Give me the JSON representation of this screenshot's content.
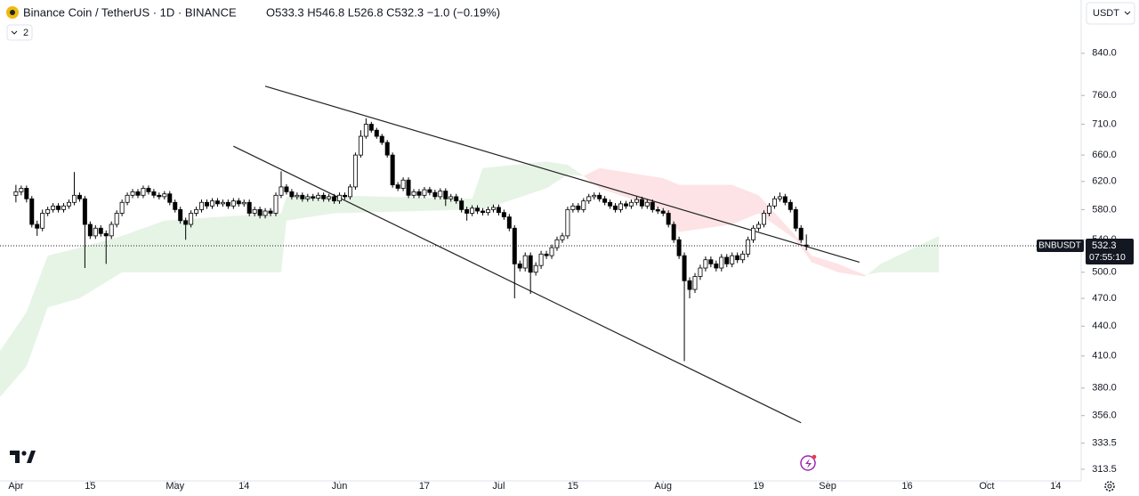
{
  "chart_data": {
    "type": "candlestick",
    "title": "Binance Coin / TetherUS · 1D · BINANCE",
    "ohlc_header": "O533.3 H546.8 L526.8 C532.3 −1.0 (−0.19%)",
    "indicator_count": "2",
    "currency": "USDT",
    "symbol": "BNBUSDT",
    "last_price_label": "532.3",
    "countdown": "07:55:10",
    "log_scale": true,
    "up_color": "#ffffff",
    "down_color": "#000000",
    "border_color": "#000000",
    "cloud_up_color": "rgba(76,175,80,0.14)",
    "cloud_down_color": "rgba(242,54,69,0.14)",
    "trendline_color": "#222222",
    "xlim": [
      -3,
      200.8
    ],
    "ylim": [
      305,
      953
    ],
    "xticks": [
      {
        "value": 0,
        "label": "Apr"
      },
      {
        "value": 14,
        "label": "15"
      },
      {
        "value": 30,
        "label": "May"
      },
      {
        "value": 43,
        "label": "14"
      },
      {
        "value": 61,
        "label": "Jun"
      },
      {
        "value": 77,
        "label": "17"
      },
      {
        "value": 91,
        "label": "Jul"
      },
      {
        "value": 105,
        "label": "15"
      },
      {
        "value": 122,
        "label": "Aug"
      },
      {
        "value": 140,
        "label": "19"
      },
      {
        "value": 153,
        "label": "Sep"
      },
      {
        "value": 168,
        "label": "16"
      },
      {
        "value": 183,
        "label": "Oct"
      },
      {
        "value": 196,
        "label": "14"
      }
    ],
    "yticks": [
      313.5,
      333.5,
      {
        "value": 356,
        "label": "356.0"
      },
      {
        "value": 380,
        "label": "380.0"
      },
      {
        "value": 410,
        "label": "410.0"
      },
      {
        "value": 440,
        "label": "440.0"
      },
      {
        "value": 470,
        "label": "470.0"
      },
      {
        "value": 500,
        "label": "500.0"
      },
      {
        "value": 540,
        "label": "540.0"
      },
      {
        "value": 580,
        "label": "580.0"
      },
      {
        "value": 620,
        "label": "620.0"
      },
      {
        "value": 660,
        "label": "660.0"
      },
      {
        "value": 710,
        "label": "710.0"
      },
      {
        "value": 760,
        "label": "760.0"
      },
      {
        "value": 840,
        "label": "840.0"
      }
    ],
    "ohlc": [
      [
        600,
        615,
        590,
        605
      ],
      [
        605,
        614,
        600,
        610
      ],
      [
        610,
        614,
        590,
        595
      ],
      [
        595,
        599,
        556,
        560
      ],
      [
        560,
        565,
        545,
        555
      ],
      [
        555,
        580,
        551,
        575
      ],
      [
        575,
        584,
        571,
        580
      ],
      [
        580,
        589,
        576,
        585
      ],
      [
        585,
        589,
        576,
        580
      ],
      [
        580,
        589,
        576,
        585
      ],
      [
        585,
        594,
        581,
        590
      ],
      [
        590,
        634,
        586,
        600
      ],
      [
        600,
        604,
        591,
        595
      ],
      [
        595,
        599,
        505,
        560
      ],
      [
        560,
        564,
        541,
        545
      ],
      [
        545,
        559,
        541,
        555
      ],
      [
        555,
        559,
        544,
        548
      ],
      [
        548,
        552,
        510,
        545
      ],
      [
        545,
        564,
        541,
        560
      ],
      [
        560,
        579,
        556,
        575
      ],
      [
        575,
        594,
        571,
        590
      ],
      [
        590,
        604,
        586,
        600
      ],
      [
        600,
        609,
        596,
        605
      ],
      [
        605,
        609,
        596,
        600
      ],
      [
        600,
        614,
        596,
        610
      ],
      [
        610,
        614,
        601,
        605
      ],
      [
        605,
        609,
        596,
        600
      ],
      [
        600,
        604,
        594,
        598
      ],
      [
        598,
        606,
        594,
        602
      ],
      [
        602,
        606,
        586,
        590
      ],
      [
        590,
        594,
        576,
        580
      ],
      [
        580,
        584,
        561,
        565
      ],
      [
        565,
        569,
        540,
        560
      ],
      [
        560,
        579,
        556,
        575
      ],
      [
        575,
        584,
        571,
        580
      ],
      [
        580,
        594,
        576,
        590
      ],
      [
        590,
        594,
        581,
        585
      ],
      [
        585,
        596,
        581,
        592
      ],
      [
        592,
        596,
        584,
        588
      ],
      [
        588,
        594,
        584,
        590
      ],
      [
        590,
        594,
        581,
        585
      ],
      [
        585,
        596,
        581,
        592
      ],
      [
        592,
        596,
        584,
        588
      ],
      [
        588,
        594,
        584,
        590
      ],
      [
        590,
        594,
        571,
        575
      ],
      [
        575,
        584,
        571,
        580
      ],
      [
        580,
        584,
        568,
        572
      ],
      [
        572,
        582,
        568,
        578
      ],
      [
        578,
        582,
        571,
        575
      ],
      [
        575,
        604,
        571,
        600
      ],
      [
        600,
        635,
        596,
        612
      ],
      [
        612,
        616,
        601,
        605
      ],
      [
        605,
        609,
        594,
        598
      ],
      [
        598,
        604,
        594,
        600
      ],
      [
        600,
        604,
        591,
        595
      ],
      [
        595,
        602,
        591,
        598
      ],
      [
        598,
        602,
        592,
        596
      ],
      [
        596,
        604,
        592,
        600
      ],
      [
        600,
        604,
        591,
        595
      ],
      [
        595,
        602,
        591,
        598
      ],
      [
        598,
        602,
        588,
        592
      ],
      [
        592,
        604,
        588,
        600
      ],
      [
        600,
        604,
        594,
        598
      ],
      [
        598,
        616,
        594,
        612
      ],
      [
        612,
        664,
        608,
        660
      ],
      [
        660,
        700,
        656,
        690
      ],
      [
        690,
        720,
        686,
        710
      ],
      [
        710,
        714,
        696,
        700
      ],
      [
        700,
        704,
        686,
        690
      ],
      [
        690,
        694,
        676,
        680
      ],
      [
        680,
        684,
        656,
        660
      ],
      [
        660,
        664,
        611,
        615
      ],
      [
        615,
        619,
        606,
        610
      ],
      [
        610,
        626,
        606,
        622
      ],
      [
        622,
        626,
        596,
        600
      ],
      [
        600,
        609,
        596,
        605
      ],
      [
        605,
        609,
        596,
        600
      ],
      [
        600,
        612,
        596,
        608
      ],
      [
        608,
        612,
        600,
        604
      ],
      [
        604,
        608,
        594,
        598
      ],
      [
        598,
        610,
        594,
        606
      ],
      [
        606,
        610,
        585,
        595
      ],
      [
        595,
        602,
        591,
        598
      ],
      [
        598,
        602,
        588,
        592
      ],
      [
        592,
        596,
        576,
        580
      ],
      [
        580,
        584,
        565,
        575
      ],
      [
        575,
        586,
        571,
        582
      ],
      [
        582,
        586,
        574,
        578
      ],
      [
        578,
        582,
        572,
        576
      ],
      [
        576,
        584,
        572,
        580
      ],
      [
        580,
        587,
        576,
        583
      ],
      [
        583,
        587,
        572,
        576
      ],
      [
        576,
        580,
        566,
        570
      ],
      [
        570,
        574,
        551,
        555
      ],
      [
        555,
        559,
        470,
        510
      ],
      [
        510,
        514,
        501,
        505
      ],
      [
        505,
        524,
        501,
        520
      ],
      [
        520,
        524,
        475,
        500
      ],
      [
        500,
        512,
        496,
        508
      ],
      [
        508,
        526,
        504,
        522
      ],
      [
        522,
        526,
        516,
        520
      ],
      [
        520,
        534,
        516,
        530
      ],
      [
        530,
        544,
        526,
        540
      ],
      [
        540,
        549,
        536,
        545
      ],
      [
        545,
        584,
        541,
        580
      ],
      [
        580,
        589,
        576,
        585
      ],
      [
        585,
        589,
        576,
        580
      ],
      [
        580,
        596,
        576,
        592
      ],
      [
        592,
        602,
        588,
        598
      ],
      [
        598,
        604,
        594,
        600
      ],
      [
        600,
        604,
        591,
        595
      ],
      [
        595,
        599,
        586,
        590
      ],
      [
        590,
        594,
        581,
        585
      ],
      [
        585,
        589,
        576,
        580
      ],
      [
        580,
        592,
        576,
        588
      ],
      [
        588,
        592,
        581,
        585
      ],
      [
        585,
        594,
        581,
        590
      ],
      [
        590,
        598,
        586,
        594
      ],
      [
        594,
        598,
        581,
        585
      ],
      [
        585,
        594,
        581,
        590
      ],
      [
        590,
        594,
        576,
        580
      ],
      [
        580,
        584,
        574,
        578
      ],
      [
        578,
        582,
        571,
        575
      ],
      [
        575,
        579,
        556,
        560
      ],
      [
        560,
        564,
        536,
        540
      ],
      [
        540,
        544,
        516,
        520
      ],
      [
        520,
        524,
        405,
        490
      ],
      [
        490,
        494,
        470,
        480
      ],
      [
        480,
        499,
        476,
        495
      ],
      [
        495,
        509,
        491,
        505
      ],
      [
        505,
        519,
        501,
        515
      ],
      [
        515,
        519,
        506,
        510
      ],
      [
        510,
        514,
        501,
        505
      ],
      [
        505,
        522,
        501,
        518
      ],
      [
        518,
        522,
        506,
        510
      ],
      [
        510,
        524,
        506,
        520
      ],
      [
        520,
        524,
        511,
        515
      ],
      [
        515,
        526,
        511,
        522
      ],
      [
        522,
        544,
        518,
        540
      ],
      [
        540,
        559,
        536,
        555
      ],
      [
        555,
        564,
        551,
        560
      ],
      [
        560,
        579,
        556,
        575
      ],
      [
        575,
        589,
        571,
        585
      ],
      [
        585,
        599,
        581,
        595
      ],
      [
        595,
        604,
        591,
        598
      ],
      [
        598,
        602,
        586,
        590
      ],
      [
        590,
        594,
        576,
        580
      ],
      [
        580,
        584,
        551,
        555
      ],
      [
        555,
        559,
        536,
        540
      ],
      [
        533.3,
        546.8,
        526.8,
        532.3
      ]
    ],
    "cloud": {
      "x": [
        -3,
        2,
        6,
        12,
        20,
        28,
        38,
        50,
        51,
        60,
        86,
        88,
        100,
        104,
        107,
        110,
        122,
        125,
        135,
        140,
        147,
        150,
        155,
        160,
        163,
        174
      ],
      "span_a": [
        415,
        455,
        520,
        530,
        545,
        565,
        570,
        575,
        598,
        600,
        595,
        640,
        650,
        645,
        628,
        610,
        580,
        550,
        560,
        575,
        540,
        512,
        500,
        495,
        510,
        545
      ],
      "span_b": [
        372,
        400,
        460,
        470,
        500,
        500,
        500,
        500,
        565,
        575,
        580,
        580,
        610,
        630,
        628,
        640,
        625,
        615,
        615,
        600,
        545,
        520,
        510,
        497,
        500,
        500
      ]
    },
    "trendlines": [
      {
        "x": [
          47,
          159
        ],
        "y": [
          777,
          512
        ]
      },
      {
        "x": [
          41,
          148
        ],
        "y": [
          674,
          350
        ]
      }
    ]
  }
}
